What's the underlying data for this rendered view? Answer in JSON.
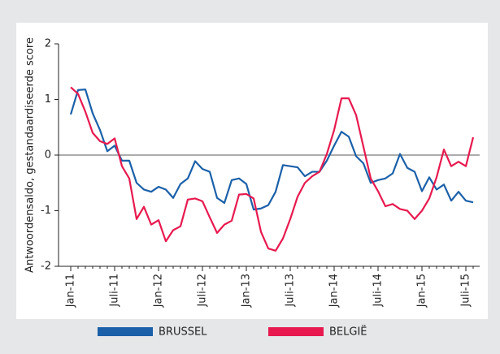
{
  "chart_data": {
    "type": "line",
    "y_label": "Antwoordensaldo, gestandaardiseerde score",
    "categories": [
      "Jan-11",
      null,
      null,
      null,
      null,
      null,
      "Juli-11",
      null,
      null,
      null,
      null,
      null,
      "Jan-12",
      null,
      null,
      null,
      null,
      null,
      "Juli-12",
      null,
      null,
      null,
      null,
      null,
      "Jan-13",
      null,
      null,
      null,
      null,
      null,
      "Juli-13",
      null,
      null,
      null,
      null,
      null,
      "Jan-14",
      null,
      null,
      null,
      null,
      null,
      "Juli-14",
      null,
      null,
      null,
      null,
      null,
      "Jan-15",
      null,
      null,
      null,
      null,
      null,
      "Juli-15",
      null
    ],
    "series": [
      {
        "name": "BRUSSEL",
        "color": "#1b60a9",
        "values": [
          0.73,
          1.17,
          1.18,
          0.75,
          0.45,
          0.07,
          0.17,
          -0.1,
          -0.1,
          -0.5,
          -0.62,
          -0.66,
          -0.57,
          -0.62,
          -0.77,
          -0.52,
          -0.42,
          -0.11,
          -0.25,
          -0.3,
          -0.77,
          -0.86,
          -0.45,
          -0.42,
          -0.52,
          -0.98,
          -0.96,
          -0.9,
          -0.66,
          -0.18,
          -0.2,
          -0.22,
          -0.38,
          -0.3,
          -0.3,
          -0.1,
          0.17,
          0.42,
          0.33,
          -0.02,
          -0.15,
          -0.5,
          -0.45,
          -0.42,
          -0.33,
          0.02,
          -0.23,
          -0.3,
          -0.65,
          -0.4,
          -0.62,
          -0.53,
          -0.82,
          -0.66,
          -0.82,
          -0.85
        ]
      },
      {
        "name": "BELGIË",
        "color": "#e8194f",
        "values": [
          1.22,
          1.1,
          0.78,
          0.4,
          0.25,
          0.2,
          0.3,
          -0.2,
          -0.42,
          -1.15,
          -0.93,
          -1.25,
          -1.17,
          -1.55,
          -1.35,
          -1.28,
          -0.8,
          -0.78,
          -0.83,
          -1.12,
          -1.4,
          -1.25,
          -1.18,
          -0.71,
          -0.7,
          -0.78,
          -1.38,
          -1.68,
          -1.72,
          -1.5,
          -1.15,
          -0.75,
          -0.5,
          -0.38,
          -0.3,
          0.02,
          0.45,
          1.02,
          1.02,
          0.72,
          0.15,
          -0.42,
          -0.65,
          -0.92,
          -0.88,
          -0.97,
          -1.0,
          -1.15,
          -1.0,
          -0.78,
          -0.4,
          0.1,
          -0.2,
          -0.12,
          -0.2,
          0.32
        ]
      }
    ],
    "ylim": [
      -2,
      2
    ],
    "yticks": [
      -2,
      -1,
      0,
      1,
      2
    ]
  }
}
